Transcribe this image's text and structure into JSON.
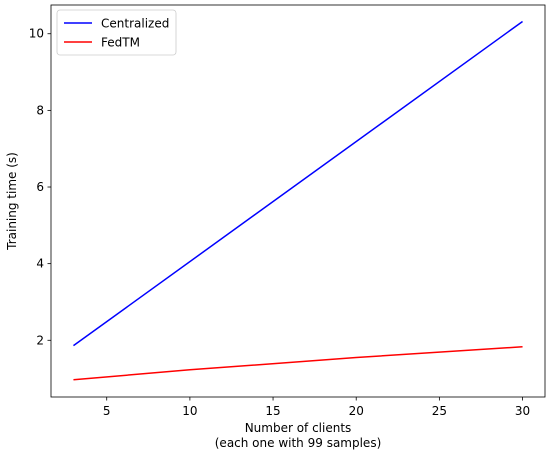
{
  "chart_data": {
    "type": "line",
    "xlabel_line1": "Number of clients",
    "xlabel_line2": "(each one with 99 samples)",
    "ylabel": "Training time (s)",
    "xlim": [
      1.65,
      31.35
    ],
    "ylim": [
      0.52,
      10.75
    ],
    "xticks": [
      5,
      10,
      15,
      20,
      25,
      30
    ],
    "yticks": [
      2,
      4,
      6,
      8,
      10
    ],
    "grid": false,
    "legend_position": "upper left",
    "series": [
      {
        "name": "Centralized",
        "color": "#0000ff",
        "x": [
          3,
          30
        ],
        "y": [
          1.86,
          10.32
        ]
      },
      {
        "name": "FedTM",
        "color": "#ff0000",
        "x": [
          3,
          10,
          20,
          30
        ],
        "y": [
          0.97,
          1.23,
          1.55,
          1.83
        ]
      }
    ]
  }
}
